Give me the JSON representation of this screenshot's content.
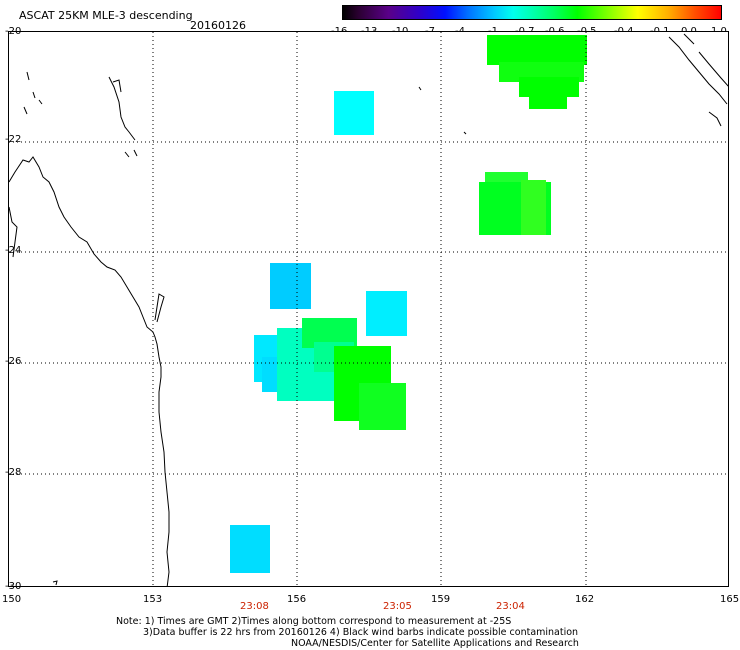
{
  "header": {
    "title": "ASCAT 25KM MLE-3 descending",
    "date": "20160126"
  },
  "colorbar": {
    "labels": [
      "-16",
      "-13",
      "-10",
      "-7",
      "-4",
      "-1",
      "-0.7",
      "-0.6",
      "-0.5",
      "-0.4",
      "-0.1",
      "0.0",
      "1.0"
    ]
  },
  "latitude_labels": [
    "-20",
    "-22",
    "-24",
    "-26",
    "-28",
    "-30"
  ],
  "longitude_labels": [
    "150",
    "153",
    "156",
    "159",
    "162",
    "165"
  ],
  "time_labels": [
    "23:08",
    "23:05",
    "23:04"
  ],
  "notes": {
    "line1": "Note: 1) Times are GMT 2)Times along bottom correspond to measurement at -25S",
    "line2": "3)Data buffer is 22 hrs from 20160126 4) Black wind barbs indicate possible contamination",
    "line3": "NOAA/NESDIS/Center for Satellite Applications and Research"
  },
  "colors": {
    "green": "#00ff00",
    "light_green": "#20ff40",
    "cyan": "#00ffff",
    "sky": "#00ccff",
    "aqua_green": "#00ffb0",
    "time_red": "#cc2200",
    "grid": "#000000"
  }
}
